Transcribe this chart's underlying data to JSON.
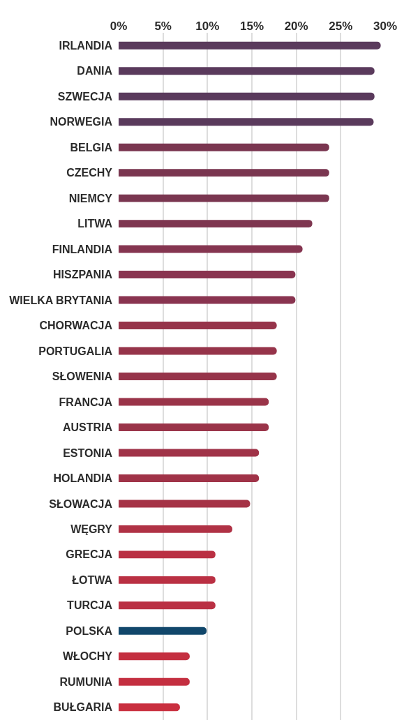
{
  "chart_data": {
    "type": "bar",
    "orientation": "horizontal",
    "categories": [
      "IRLANDIA",
      "DANIA",
      "SZWECJA",
      "NORWEGIA",
      "BELGIA",
      "CZECHY",
      "NIEMCY",
      "LITWA",
      "FINLANDIA",
      "HISZPANIA",
      "WIELKA BRYTANIA",
      "CHORWACJA",
      "PORTUGALIA",
      "SŁOWENIA",
      "FRANCJA",
      "AUSTRIA",
      "ESTONIA",
      "HOLANDIA",
      "SŁOWACJA",
      "WĘGRY",
      "GRECJA",
      "ŁOTWA",
      "TURCJA",
      "POLSKA",
      "WŁOCHY",
      "RUMUNIA",
      "BUŁGARIA"
    ],
    "values": [
      29.5,
      28.8,
      28.8,
      28.7,
      23.7,
      23.7,
      23.7,
      21.8,
      20.7,
      19.9,
      19.9,
      17.8,
      17.8,
      17.8,
      16.9,
      16.9,
      15.8,
      15.8,
      14.8,
      12.8,
      10.9,
      10.9,
      10.9,
      9.9,
      8.0,
      8.0,
      6.9
    ],
    "colors": [
      "#5a3a5c",
      "#5a3a5c",
      "#5a3a5c",
      "#5a3a5c",
      "#7a3650",
      "#7a3650",
      "#7a3650",
      "#7e3650",
      "#853550",
      "#893450",
      "#893450",
      "#96344a",
      "#96344a",
      "#96344a",
      "#9a3449",
      "#9a3449",
      "#a03348",
      "#a03348",
      "#a53346",
      "#b03245",
      "#ba3043",
      "#ba3043",
      "#ba3043",
      "#11476b",
      "#c42f40",
      "#c42f40",
      "#c92f3f"
    ],
    "xlim": [
      0,
      30
    ],
    "xticks": [
      {
        "value": 0,
        "label": "0%"
      },
      {
        "value": 5,
        "label": "5%"
      },
      {
        "value": 10,
        "label": "10%"
      },
      {
        "value": 15,
        "label": "15%"
      },
      {
        "value": 20,
        "label": "20%"
      },
      {
        "value": 25,
        "label": "25%"
      },
      {
        "value": 30,
        "label": "30%"
      }
    ],
    "grid": "x"
  }
}
